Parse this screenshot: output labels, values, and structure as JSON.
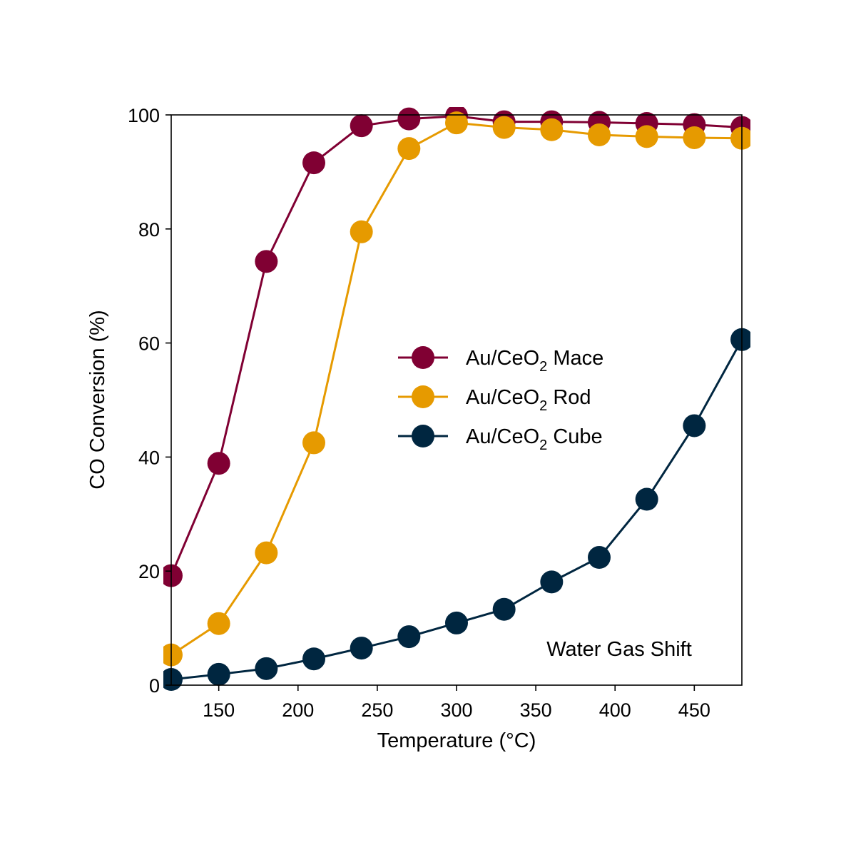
{
  "chart_data": {
    "type": "line",
    "xlabel": "Temperature (°C)",
    "ylabel": "CO Conversion (%)",
    "xlim": [
      120,
      480
    ],
    "ylim": [
      0,
      100
    ],
    "xticks": [
      150,
      200,
      250,
      300,
      350,
      400,
      450
    ],
    "yticks": [
      0,
      20,
      40,
      60,
      80,
      100
    ],
    "grid": false,
    "legend_position": "center-right",
    "annotation": "Water Gas Shift",
    "x": [
      120,
      150,
      180,
      210,
      240,
      270,
      300,
      330,
      360,
      390,
      420,
      450,
      480
    ],
    "series": [
      {
        "legend_prefix": "Au/CeO",
        "legend_sub": "2",
        "legend_suffix": " Mace",
        "color": "#800033",
        "marker": "circle",
        "values": [
          19.2,
          38.9,
          74.3,
          91.6,
          98.1,
          99.3,
          99.8,
          98.8,
          98.8,
          98.7,
          98.5,
          98.3,
          97.8
        ]
      },
      {
        "legend_prefix": "Au/CeO",
        "legend_sub": "2",
        "legend_suffix": " Rod",
        "color": "#E69A00",
        "marker": "circle",
        "values": [
          5.3,
          10.8,
          23.2,
          42.5,
          79.5,
          94.1,
          98.6,
          97.8,
          97.4,
          96.5,
          96.2,
          96.0,
          95.9
        ]
      },
      {
        "legend_prefix": "Au/CeO",
        "legend_sub": "2",
        "legend_suffix": " Cube",
        "color": "#002640",
        "marker": "circle",
        "values": [
          1.0,
          1.9,
          2.9,
          4.6,
          6.5,
          8.5,
          10.9,
          13.3,
          18.1,
          22.4,
          32.6,
          45.5,
          60.6
        ]
      }
    ]
  }
}
